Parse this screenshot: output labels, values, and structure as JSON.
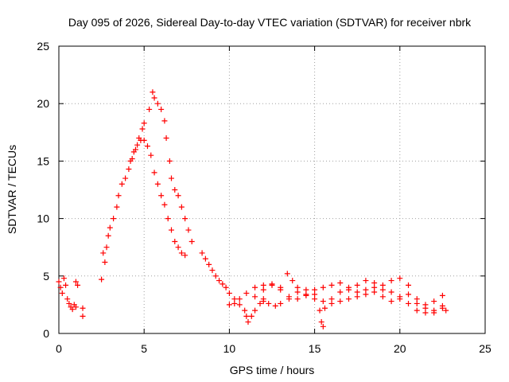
{
  "chart_data": {
    "type": "scatter",
    "title": "Day 095 of 2026, Sidereal Day-to-day VTEC variation (SDTVAR) for receiver nbrk",
    "xlabel": "GPS time / hours",
    "ylabel": "SDTVAR / TECUs",
    "xlim": [
      0,
      25
    ],
    "ylim": [
      0,
      25
    ],
    "x_ticks": [
      0,
      5,
      10,
      15,
      20,
      25
    ],
    "y_ticks": [
      0,
      5,
      10,
      15,
      20,
      25
    ],
    "x_tick_labels": [
      "0",
      "5",
      "10",
      "15",
      "20",
      "25"
    ],
    "y_tick_labels": [
      "0",
      "5",
      "10",
      "15",
      "20",
      "25"
    ],
    "grid": true,
    "marker": "plus",
    "color": "#ff0000",
    "series": [
      {
        "name": "SDTVAR",
        "points": [
          [
            0.0,
            4.5
          ],
          [
            0.1,
            4.0
          ],
          [
            0.2,
            3.5
          ],
          [
            0.3,
            4.8
          ],
          [
            0.4,
            4.2
          ],
          [
            0.5,
            3.0
          ],
          [
            0.6,
            2.6
          ],
          [
            0.7,
            2.3
          ],
          [
            0.8,
            2.1
          ],
          [
            0.9,
            2.5
          ],
          [
            1.0,
            2.3
          ],
          [
            1.0,
            4.5
          ],
          [
            1.1,
            4.2
          ],
          [
            1.4,
            1.5
          ],
          [
            1.4,
            2.2
          ],
          [
            2.5,
            4.7
          ],
          [
            2.6,
            7.0
          ],
          [
            2.7,
            6.2
          ],
          [
            2.8,
            7.5
          ],
          [
            2.9,
            8.5
          ],
          [
            3.0,
            9.2
          ],
          [
            3.2,
            10.0
          ],
          [
            3.4,
            11.0
          ],
          [
            3.5,
            12.0
          ],
          [
            3.7,
            13.0
          ],
          [
            3.9,
            13.5
          ],
          [
            4.1,
            14.3
          ],
          [
            4.3,
            15.2
          ],
          [
            4.5,
            16.0
          ],
          [
            4.7,
            17.0
          ],
          [
            4.9,
            17.8
          ],
          [
            5.0,
            18.3
          ],
          [
            4.2,
            15.0
          ],
          [
            4.4,
            15.8
          ],
          [
            4.6,
            16.4
          ],
          [
            4.8,
            16.8
          ],
          [
            5.0,
            16.8
          ],
          [
            5.2,
            16.3
          ],
          [
            5.4,
            15.5
          ],
          [
            5.6,
            14.0
          ],
          [
            5.8,
            13.0
          ],
          [
            6.0,
            12.0
          ],
          [
            6.2,
            11.2
          ],
          [
            6.4,
            10.0
          ],
          [
            6.6,
            9.0
          ],
          [
            6.8,
            8.0
          ],
          [
            7.0,
            7.5
          ],
          [
            7.2,
            7.0
          ],
          [
            7.4,
            6.8
          ],
          [
            5.3,
            19.5
          ],
          [
            5.5,
            21.0
          ],
          [
            5.6,
            20.5
          ],
          [
            5.8,
            20.0
          ],
          [
            6.0,
            19.5
          ],
          [
            6.2,
            18.5
          ],
          [
            6.3,
            17.0
          ],
          [
            6.5,
            15.0
          ],
          [
            6.6,
            13.5
          ],
          [
            6.8,
            12.5
          ],
          [
            7.0,
            12.0
          ],
          [
            7.2,
            11.0
          ],
          [
            7.4,
            10.0
          ],
          [
            7.6,
            9.0
          ],
          [
            7.8,
            8.0
          ],
          [
            8.4,
            7.0
          ],
          [
            8.6,
            6.5
          ],
          [
            8.8,
            6.0
          ],
          [
            9.0,
            5.5
          ],
          [
            9.2,
            5.0
          ],
          [
            9.4,
            4.6
          ],
          [
            9.6,
            4.3
          ],
          [
            9.8,
            4.0
          ],
          [
            10.0,
            3.5
          ],
          [
            10.3,
            3.0
          ],
          [
            10.6,
            2.5
          ],
          [
            10.9,
            2.0
          ],
          [
            11.0,
            1.5
          ],
          [
            11.1,
            1.0
          ],
          [
            11.3,
            1.5
          ],
          [
            11.5,
            2.0
          ],
          [
            11.8,
            2.6
          ],
          [
            12.0,
            2.8
          ],
          [
            10.0,
            2.5
          ],
          [
            10.3,
            2.6
          ],
          [
            10.6,
            3.0
          ],
          [
            11.0,
            3.5
          ],
          [
            11.5,
            4.0
          ],
          [
            12.0,
            4.2
          ],
          [
            12.5,
            4.3
          ],
          [
            13.0,
            3.8
          ],
          [
            13.5,
            3.2
          ],
          [
            14.0,
            3.0
          ],
          [
            14.5,
            3.3
          ],
          [
            15.0,
            3.0
          ],
          [
            15.5,
            2.8
          ],
          [
            16.0,
            3.0
          ],
          [
            16.5,
            3.6
          ],
          [
            17.0,
            3.8
          ],
          [
            17.5,
            3.6
          ],
          [
            18.0,
            3.4
          ],
          [
            18.5,
            3.6
          ],
          [
            19.0,
            3.8
          ],
          [
            19.5,
            3.6
          ],
          [
            20.0,
            3.2
          ],
          [
            20.5,
            2.6
          ],
          [
            21.0,
            2.0
          ],
          [
            21.5,
            1.8
          ],
          [
            22.0,
            2.0
          ],
          [
            22.5,
            2.4
          ],
          [
            12.0,
            3.0
          ],
          [
            12.3,
            2.6
          ],
          [
            12.7,
            2.4
          ],
          [
            13.0,
            2.6
          ],
          [
            13.5,
            3.0
          ],
          [
            14.0,
            3.6
          ],
          [
            14.5,
            3.8
          ],
          [
            15.0,
            3.4
          ],
          [
            15.3,
            2.0
          ],
          [
            15.4,
            1.0
          ],
          [
            15.5,
            0.6
          ],
          [
            15.6,
            2.2
          ],
          [
            16.0,
            2.6
          ],
          [
            16.5,
            2.8
          ],
          [
            17.0,
            3.0
          ],
          [
            17.5,
            3.2
          ],
          [
            18.0,
            3.8
          ],
          [
            18.5,
            4.4
          ],
          [
            19.0,
            4.2
          ],
          [
            19.5,
            4.6
          ],
          [
            20.0,
            4.8
          ],
          [
            20.5,
            4.2
          ],
          [
            21.0,
            3.0
          ],
          [
            21.5,
            2.5
          ],
          [
            22.0,
            2.8
          ],
          [
            22.5,
            3.3
          ],
          [
            11.5,
            3.2
          ],
          [
            12.0,
            3.8
          ],
          [
            12.5,
            4.2
          ],
          [
            13.0,
            4.0
          ],
          [
            13.4,
            5.2
          ],
          [
            13.7,
            4.6
          ],
          [
            14.0,
            4.0
          ],
          [
            14.5,
            3.4
          ],
          [
            15.0,
            3.8
          ],
          [
            15.5,
            4.0
          ],
          [
            16.0,
            4.2
          ],
          [
            16.5,
            4.4
          ],
          [
            17.0,
            4.0
          ],
          [
            17.5,
            4.2
          ],
          [
            18.0,
            4.6
          ],
          [
            18.5,
            4.0
          ],
          [
            19.0,
            3.2
          ],
          [
            19.5,
            2.8
          ],
          [
            20.0,
            3.0
          ],
          [
            20.5,
            3.4
          ],
          [
            21.0,
            2.6
          ],
          [
            21.5,
            2.2
          ],
          [
            22.0,
            1.8
          ],
          [
            22.5,
            2.2
          ],
          [
            22.7,
            2.0
          ]
        ]
      }
    ]
  }
}
